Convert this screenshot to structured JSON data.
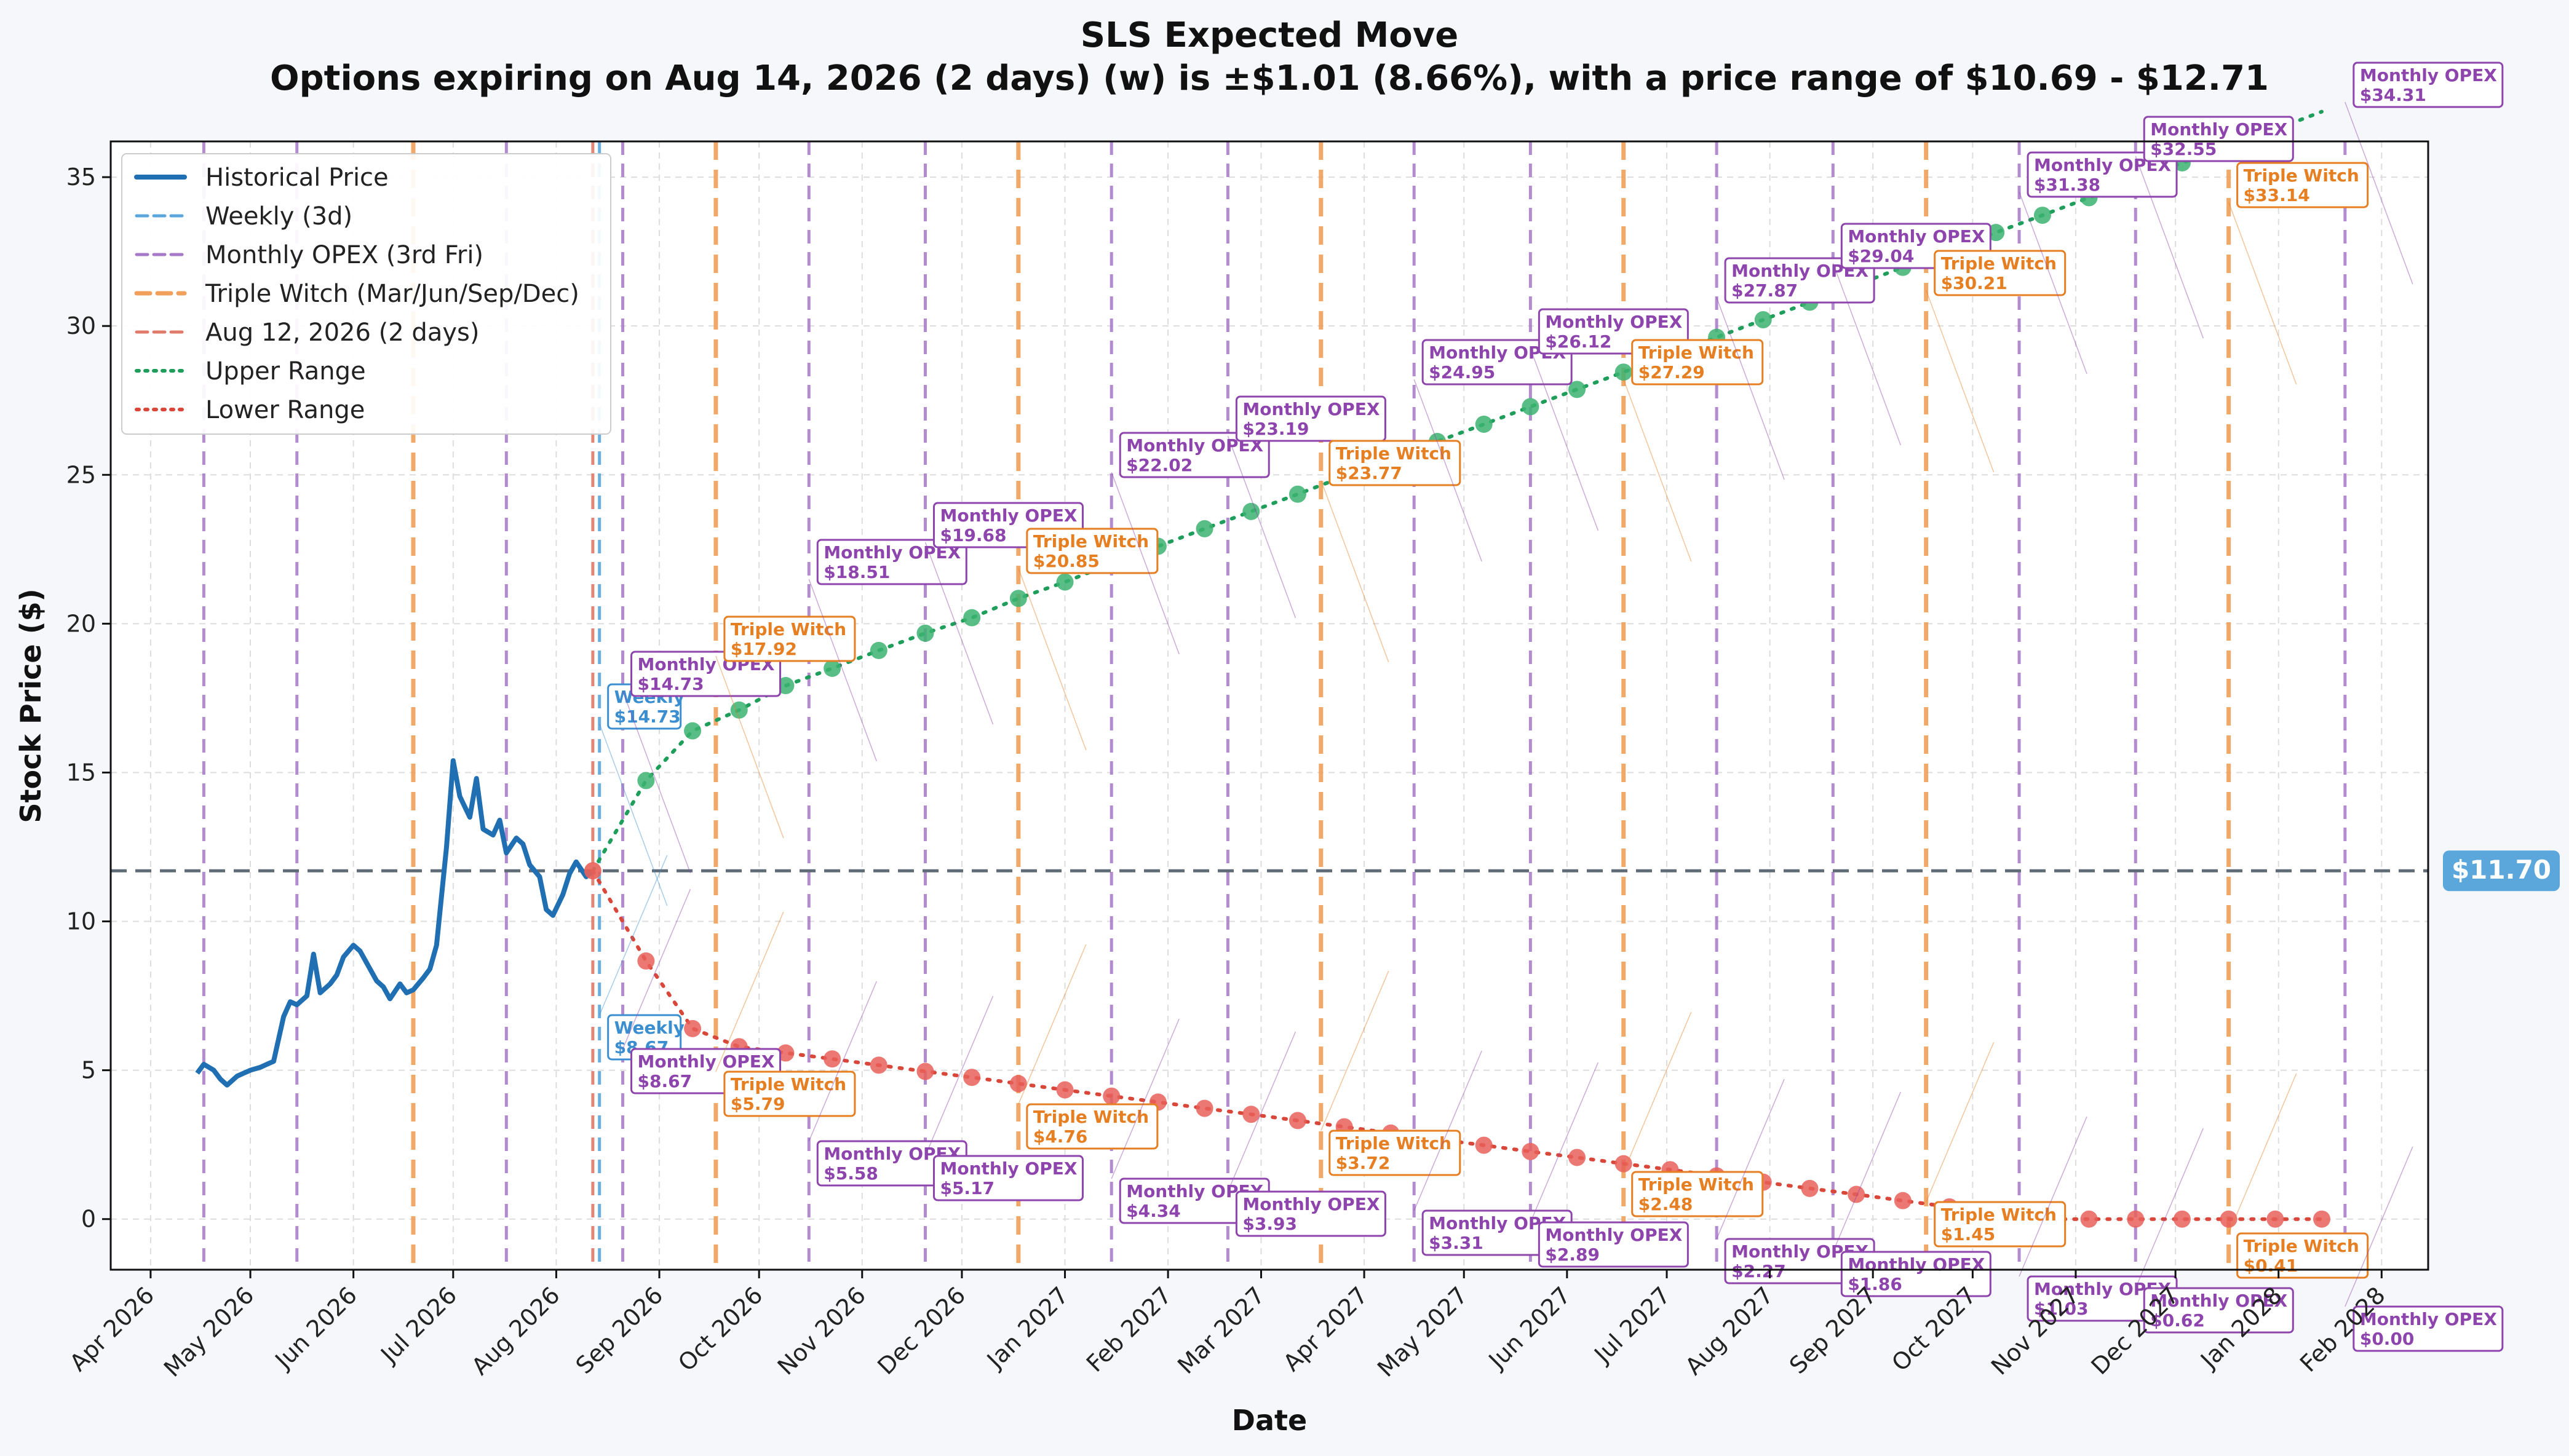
{
  "chart_data": {
    "type": "line",
    "title": "SLS Expected Move",
    "subtitle": "Options expiring on Aug 14, 2026 (2 days) (w) is ±$1.01 (8.66%), with a price range of $10.69 - $12.71",
    "xlabel": "Date",
    "ylabel": "Stock Price ($)",
    "ylim": [
      -1.7,
      36.2
    ],
    "xlim": [
      "2026-03-20",
      "2028-02-15"
    ],
    "yticks": [
      0,
      5,
      10,
      15,
      20,
      25,
      30,
      35
    ],
    "xticks": [
      {
        "date": "2026-04-01",
        "label": "Apr 2026"
      },
      {
        "date": "2026-05-01",
        "label": "May 2026"
      },
      {
        "date": "2026-06-01",
        "label": "Jun 2026"
      },
      {
        "date": "2026-07-01",
        "label": "Jul 2026"
      },
      {
        "date": "2026-08-01",
        "label": "Aug 2026"
      },
      {
        "date": "2026-09-01",
        "label": "Sep 2026"
      },
      {
        "date": "2026-10-01",
        "label": "Oct 2026"
      },
      {
        "date": "2026-11-01",
        "label": "Nov 2026"
      },
      {
        "date": "2026-12-01",
        "label": "Dec 2026"
      },
      {
        "date": "2027-01-01",
        "label": "Jan 2027"
      },
      {
        "date": "2027-02-01",
        "label": "Feb 2027"
      },
      {
        "date": "2027-03-01",
        "label": "Mar 2027"
      },
      {
        "date": "2027-04-01",
        "label": "Apr 2027"
      },
      {
        "date": "2027-05-01",
        "label": "May 2027"
      },
      {
        "date": "2027-06-01",
        "label": "Jun 2027"
      },
      {
        "date": "2027-07-01",
        "label": "Jul 2027"
      },
      {
        "date": "2027-08-01",
        "label": "Aug 2027"
      },
      {
        "date": "2027-09-01",
        "label": "Sep 2027"
      },
      {
        "date": "2027-10-01",
        "label": "Oct 2027"
      },
      {
        "date": "2027-11-01",
        "label": "Nov 2027"
      },
      {
        "date": "2027-12-01",
        "label": "Dec 2027"
      },
      {
        "date": "2028-01-01",
        "label": "Jan 2028"
      },
      {
        "date": "2028-02-01",
        "label": "Feb 2028"
      }
    ],
    "grid": true,
    "legend_position": "top-left",
    "colors": {
      "historical": "#1f6fb2",
      "weekly": "#5ba7dc",
      "monthly": "#a678c8",
      "triple": "#f0a05a",
      "current": "#e07a6a",
      "upper": "#1e9e5a",
      "lower": "#d9473a",
      "upper_dot": "#3cb371",
      "lower_dot": "#e8605a",
      "price_line": "#5f6b76",
      "price_badge": "#5ba7dc"
    },
    "legend": [
      {
        "label": "Historical Price",
        "style": "historical"
      },
      {
        "label": "Weekly (3d)",
        "style": "weekly"
      },
      {
        "label": "Monthly OPEX (3rd Fri)",
        "style": "monthly"
      },
      {
        "label": "Triple Witch (Mar/Jun/Sep/Dec)",
        "style": "triple"
      },
      {
        "label": "Aug 12, 2026 (2 days)",
        "style": "current"
      },
      {
        "label": "Upper Range",
        "style": "upper"
      },
      {
        "label": "Lower Range",
        "style": "lower"
      }
    ],
    "current_price": 11.7,
    "current_price_label": "$11.70",
    "current_date": "2026-08-12",
    "historical_price": {
      "x": [
        "2026-04-15",
        "2026-04-17",
        "2026-04-20",
        "2026-04-22",
        "2026-04-24",
        "2026-04-27",
        "2026-04-29",
        "2026-05-01",
        "2026-05-04",
        "2026-05-06",
        "2026-05-08",
        "2026-05-11",
        "2026-05-13",
        "2026-05-15",
        "2026-05-18",
        "2026-05-20",
        "2026-05-22",
        "2026-05-25",
        "2026-05-27",
        "2026-05-29",
        "2026-06-01",
        "2026-06-03",
        "2026-06-05",
        "2026-06-08",
        "2026-06-10",
        "2026-06-12",
        "2026-06-15",
        "2026-06-17",
        "2026-06-19",
        "2026-06-22",
        "2026-06-24",
        "2026-06-26",
        "2026-06-29",
        "2026-07-01",
        "2026-07-03",
        "2026-07-06",
        "2026-07-08",
        "2026-07-10",
        "2026-07-13",
        "2026-07-15",
        "2026-07-17",
        "2026-07-20",
        "2026-07-22",
        "2026-07-24",
        "2026-07-27",
        "2026-07-29",
        "2026-07-31",
        "2026-08-03",
        "2026-08-05",
        "2026-08-07",
        "2026-08-10",
        "2026-08-12"
      ],
      "y": [
        4.9,
        5.2,
        5.0,
        4.7,
        4.5,
        4.8,
        4.9,
        5.0,
        5.1,
        5.2,
        5.3,
        6.8,
        7.3,
        7.2,
        7.5,
        8.9,
        7.6,
        7.9,
        8.2,
        8.8,
        9.2,
        9.0,
        8.6,
        8.0,
        7.8,
        7.4,
        7.9,
        7.6,
        7.7,
        8.1,
        8.4,
        9.2,
        12.5,
        15.4,
        14.2,
        13.5,
        14.8,
        13.1,
        12.9,
        13.4,
        12.3,
        12.8,
        12.6,
        11.9,
        11.5,
        10.4,
        10.2,
        10.9,
        11.6,
        12.0,
        11.5,
        11.7
      ]
    },
    "upper_range": {
      "x": [
        "2026-08-12",
        "2026-08-28",
        "2026-09-11",
        "2026-09-25",
        "2026-10-09",
        "2026-10-23",
        "2026-11-06",
        "2026-11-20",
        "2026-12-04",
        "2026-12-18",
        "2027-01-01",
        "2027-01-15",
        "2027-01-29",
        "2027-02-12",
        "2027-02-26",
        "2027-03-12",
        "2027-03-26",
        "2027-04-09",
        "2027-04-23",
        "2027-05-07",
        "2027-05-21",
        "2027-06-04",
        "2027-06-18",
        "2027-07-02",
        "2027-07-16",
        "2027-07-30",
        "2027-08-13",
        "2027-08-27",
        "2027-09-10",
        "2027-09-24",
        "2027-10-08",
        "2027-10-22",
        "2027-11-05",
        "2027-11-19",
        "2027-12-03",
        "2027-12-17",
        "2027-12-31",
        "2028-01-14"
      ],
      "y": [
        11.7,
        14.73,
        16.4,
        17.1,
        17.92,
        18.5,
        19.1,
        19.68,
        20.2,
        20.85,
        21.4,
        22.02,
        22.6,
        23.19,
        23.77,
        24.35,
        24.95,
        25.5,
        26.12,
        26.7,
        27.29,
        27.87,
        28.45,
        29.04,
        29.62,
        30.21,
        30.8,
        31.38,
        31.97,
        32.55,
        33.14,
        33.72,
        34.31,
        34.9,
        35.48,
        36.05,
        36.6,
        37.2
      ]
    },
    "lower_range": {
      "x": [
        "2026-08-12",
        "2026-08-28",
        "2026-09-11",
        "2026-09-25",
        "2026-10-09",
        "2026-10-23",
        "2026-11-06",
        "2026-11-20",
        "2026-12-04",
        "2026-12-18",
        "2027-01-01",
        "2027-01-15",
        "2027-01-29",
        "2027-02-12",
        "2027-02-26",
        "2027-03-12",
        "2027-03-26",
        "2027-04-09",
        "2027-04-23",
        "2027-05-07",
        "2027-05-21",
        "2027-06-04",
        "2027-06-18",
        "2027-07-02",
        "2027-07-16",
        "2027-07-30",
        "2027-08-13",
        "2027-08-27",
        "2027-09-10",
        "2027-09-24",
        "2027-10-08",
        "2027-10-22",
        "2027-11-05",
        "2027-11-19",
        "2027-12-03",
        "2027-12-17",
        "2027-12-31",
        "2028-01-14"
      ],
      "y": [
        11.7,
        8.67,
        6.4,
        5.79,
        5.58,
        5.38,
        5.17,
        4.96,
        4.76,
        4.55,
        4.34,
        4.13,
        3.93,
        3.72,
        3.52,
        3.31,
        3.1,
        2.89,
        2.68,
        2.48,
        2.27,
        2.07,
        1.86,
        1.66,
        1.45,
        1.24,
        1.03,
        0.83,
        0.62,
        0.41,
        0.21,
        0.0,
        0.0,
        0.0,
        0.0,
        0.0,
        0.0,
        0.0
      ]
    },
    "vertical_lines": [
      {
        "date": "2026-04-17",
        "type": "monthly"
      },
      {
        "date": "2026-05-15",
        "type": "monthly"
      },
      {
        "date": "2026-06-19",
        "type": "triple"
      },
      {
        "date": "2026-07-17",
        "type": "monthly"
      },
      {
        "date": "2026-08-12",
        "type": "current"
      },
      {
        "date": "2026-08-14",
        "type": "weekly"
      },
      {
        "date": "2026-08-21",
        "type": "monthly"
      },
      {
        "date": "2026-09-18",
        "type": "triple"
      },
      {
        "date": "2026-10-16",
        "type": "monthly"
      },
      {
        "date": "2026-11-20",
        "type": "monthly"
      },
      {
        "date": "2026-12-18",
        "type": "triple"
      },
      {
        "date": "2027-01-15",
        "type": "monthly"
      },
      {
        "date": "2027-02-19",
        "type": "monthly"
      },
      {
        "date": "2027-03-19",
        "type": "triple"
      },
      {
        "date": "2027-04-16",
        "type": "monthly"
      },
      {
        "date": "2027-05-21",
        "type": "monthly"
      },
      {
        "date": "2027-06-18",
        "type": "triple"
      },
      {
        "date": "2027-07-16",
        "type": "monthly"
      },
      {
        "date": "2027-08-20",
        "type": "monthly"
      },
      {
        "date": "2027-09-17",
        "type": "triple"
      },
      {
        "date": "2027-10-15",
        "type": "monthly"
      },
      {
        "date": "2027-11-19",
        "type": "monthly"
      },
      {
        "date": "2027-12-17",
        "type": "triple"
      },
      {
        "date": "2028-01-21",
        "type": "monthly"
      }
    ],
    "annotations_upper": [
      {
        "date": "2026-08-14",
        "kind": "weekly",
        "label": "Weekly",
        "value": "$14.73"
      },
      {
        "date": "2026-08-21",
        "kind": "monthly",
        "label": "Monthly OPEX",
        "value": "$14.73"
      },
      {
        "date": "2026-09-18",
        "kind": "triple",
        "label": "Triple Witch",
        "value": "$17.92"
      },
      {
        "date": "2026-10-16",
        "kind": "monthly",
        "label": "Monthly OPEX",
        "value": "$18.51"
      },
      {
        "date": "2026-11-20",
        "kind": "monthly",
        "label": "Monthly OPEX",
        "value": "$19.68"
      },
      {
        "date": "2026-12-18",
        "kind": "triple",
        "label": "Triple Witch",
        "value": "$20.85"
      },
      {
        "date": "2027-01-15",
        "kind": "monthly",
        "label": "Monthly OPEX",
        "value": "$22.02"
      },
      {
        "date": "2027-02-19",
        "kind": "monthly",
        "label": "Monthly OPEX",
        "value": "$23.19"
      },
      {
        "date": "2027-03-19",
        "kind": "triple",
        "label": "Triple Witch",
        "value": "$23.77"
      },
      {
        "date": "2027-04-16",
        "kind": "monthly",
        "label": "Monthly OPEX",
        "value": "$24.95"
      },
      {
        "date": "2027-05-21",
        "kind": "monthly",
        "label": "Monthly OPEX",
        "value": "$26.12"
      },
      {
        "date": "2027-06-18",
        "kind": "triple",
        "label": "Triple Witch",
        "value": "$27.29"
      },
      {
        "date": "2027-07-16",
        "kind": "monthly",
        "label": "Monthly OPEX",
        "value": "$27.87"
      },
      {
        "date": "2027-08-20",
        "kind": "monthly",
        "label": "Monthly OPEX",
        "value": "$29.04"
      },
      {
        "date": "2027-09-17",
        "kind": "triple",
        "label": "Triple Witch",
        "value": "$30.21"
      },
      {
        "date": "2027-10-15",
        "kind": "monthly",
        "label": "Monthly OPEX",
        "value": "$31.38"
      },
      {
        "date": "2027-11-19",
        "kind": "monthly",
        "label": "Monthly OPEX",
        "value": "$32.55"
      },
      {
        "date": "2027-12-17",
        "kind": "triple",
        "label": "Triple Witch",
        "value": "$33.14"
      },
      {
        "date": "2028-01-21",
        "kind": "monthly",
        "label": "Monthly OPEX",
        "value": "$34.31"
      }
    ],
    "annotations_lower": [
      {
        "date": "2026-08-14",
        "kind": "weekly",
        "label": "Weekly",
        "value": "$8.67"
      },
      {
        "date": "2026-08-21",
        "kind": "monthly",
        "label": "Monthly OPEX",
        "value": "$8.67"
      },
      {
        "date": "2026-09-18",
        "kind": "triple",
        "label": "Triple Witch",
        "value": "$5.79"
      },
      {
        "date": "2026-10-16",
        "kind": "monthly",
        "label": "Monthly OPEX",
        "value": "$5.58"
      },
      {
        "date": "2026-11-20",
        "kind": "monthly",
        "label": "Monthly OPEX",
        "value": "$5.17"
      },
      {
        "date": "2026-12-18",
        "kind": "triple",
        "label": "Triple Witch",
        "value": "$4.76"
      },
      {
        "date": "2027-01-15",
        "kind": "monthly",
        "label": "Monthly OPEX",
        "value": "$4.34"
      },
      {
        "date": "2027-02-19",
        "kind": "monthly",
        "label": "Monthly OPEX",
        "value": "$3.93"
      },
      {
        "date": "2027-03-19",
        "kind": "triple",
        "label": "Triple Witch",
        "value": "$3.72"
      },
      {
        "date": "2027-04-16",
        "kind": "monthly",
        "label": "Monthly OPEX",
        "value": "$3.31"
      },
      {
        "date": "2027-05-21",
        "kind": "monthly",
        "label": "Monthly OPEX",
        "value": "$2.89"
      },
      {
        "date": "2027-06-18",
        "kind": "triple",
        "label": "Triple Witch",
        "value": "$2.48"
      },
      {
        "date": "2027-07-16",
        "kind": "monthly",
        "label": "Monthly OPEX",
        "value": "$2.27"
      },
      {
        "date": "2027-08-20",
        "kind": "monthly",
        "label": "Monthly OPEX",
        "value": "$1.86"
      },
      {
        "date": "2027-09-17",
        "kind": "triple",
        "label": "Triple Witch",
        "value": "$1.45"
      },
      {
        "date": "2027-10-15",
        "kind": "monthly",
        "label": "Monthly OPEX",
        "value": "$1.03"
      },
      {
        "date": "2027-11-19",
        "kind": "monthly",
        "label": "Monthly OPEX",
        "value": "$0.62"
      },
      {
        "date": "2027-12-17",
        "kind": "triple",
        "label": "Triple Witch",
        "value": "$0.41"
      },
      {
        "date": "2028-01-21",
        "kind": "monthly",
        "label": "Monthly OPEX",
        "value": "$0.00"
      }
    ]
  }
}
